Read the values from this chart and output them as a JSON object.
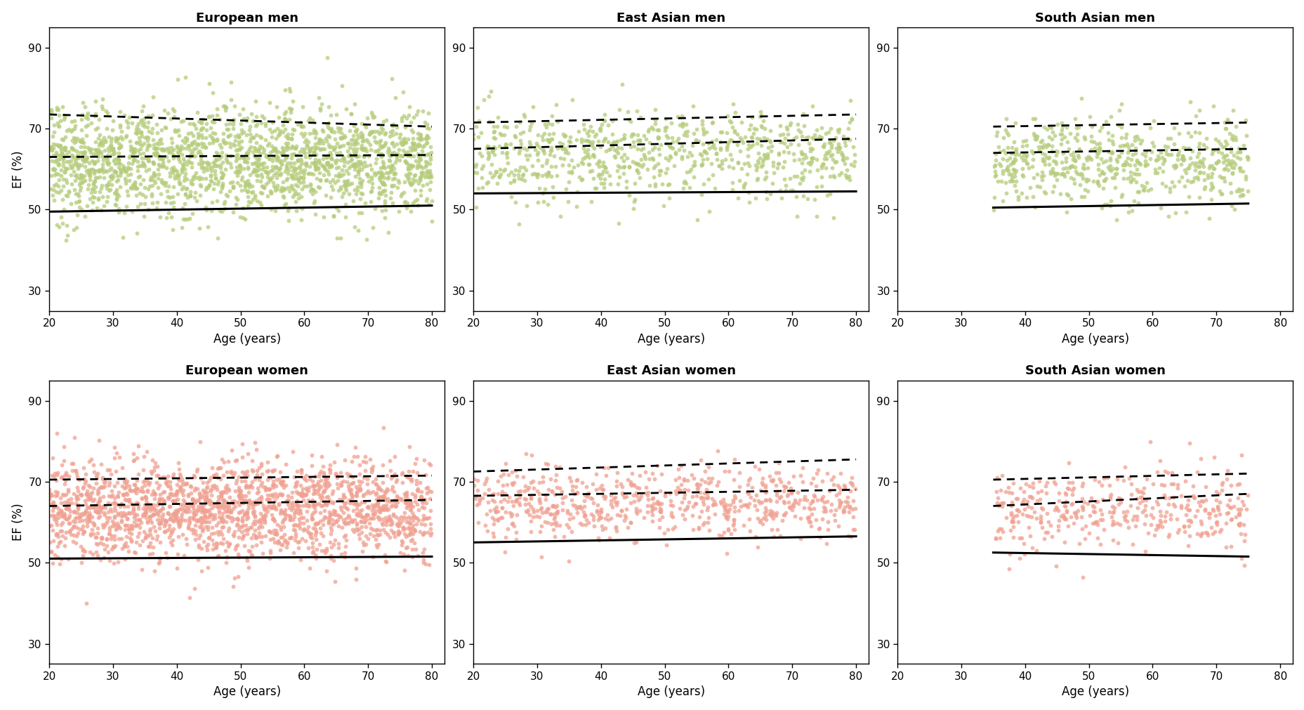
{
  "panels": [
    {
      "title": "European men",
      "sex": "men",
      "ethnicity": "european",
      "dot_color": "#b5cc7a",
      "x_min": 20,
      "x_max": 80,
      "data_x_min": 20,
      "data_x_max": 80,
      "n_points": 2000,
      "ef_mean": 62,
      "ef_std": 6.5,
      "p5_start": 49.5,
      "p5_end": 51.0,
      "p50_start": 63.0,
      "p50_end": 63.5,
      "p95_start": 73.5,
      "p95_end": 70.5
    },
    {
      "title": "East Asian men",
      "sex": "men",
      "ethnicity": "east_asian",
      "dot_color": "#b5cc7a",
      "x_min": 20,
      "x_max": 80,
      "data_x_min": 20,
      "data_x_max": 80,
      "n_points": 800,
      "ef_mean": 64,
      "ef_std": 5.5,
      "p5_start": 54.0,
      "p5_end": 54.5,
      "p50_start": 65.0,
      "p50_end": 67.5,
      "p95_start": 71.5,
      "p95_end": 73.5
    },
    {
      "title": "South Asian men",
      "sex": "men",
      "ethnicity": "south_asian",
      "dot_color": "#b5cc7a",
      "x_min": 20,
      "x_max": 80,
      "data_x_min": 35,
      "data_x_max": 75,
      "n_points": 600,
      "ef_mean": 62,
      "ef_std": 5.0,
      "p5_start": 50.5,
      "p5_end": 51.5,
      "p50_start": 64.0,
      "p50_end": 65.0,
      "p95_start": 70.5,
      "p95_end": 71.5
    },
    {
      "title": "European women",
      "sex": "women",
      "ethnicity": "european",
      "dot_color": "#f0a090",
      "x_min": 20,
      "x_max": 80,
      "data_x_min": 20,
      "data_x_max": 80,
      "n_points": 2000,
      "ef_mean": 63,
      "ef_std": 6.0,
      "p5_start": 51.0,
      "p5_end": 51.5,
      "p50_start": 64.0,
      "p50_end": 65.5,
      "p95_start": 70.5,
      "p95_end": 71.5
    },
    {
      "title": "East Asian women",
      "sex": "women",
      "ethnicity": "east_asian",
      "dot_color": "#f0a090",
      "x_min": 20,
      "x_max": 80,
      "data_x_min": 20,
      "data_x_max": 80,
      "n_points": 700,
      "ef_mean": 65,
      "ef_std": 4.5,
      "p5_start": 55.0,
      "p5_end": 56.5,
      "p50_start": 66.5,
      "p50_end": 68.0,
      "p95_start": 72.5,
      "p95_end": 75.5
    },
    {
      "title": "South Asian women",
      "sex": "women",
      "ethnicity": "south_asian",
      "dot_color": "#f0a090",
      "x_min": 20,
      "x_max": 80,
      "data_x_min": 35,
      "data_x_max": 75,
      "n_points": 400,
      "ef_mean": 63,
      "ef_std": 5.0,
      "p5_start": 52.5,
      "p5_end": 51.5,
      "p50_start": 64.0,
      "p50_end": 67.0,
      "p95_start": 70.5,
      "p95_end": 72.0
    }
  ],
  "ylim": [
    25,
    95
  ],
  "yticks": [
    30,
    50,
    70,
    90
  ],
  "xticks_full": [
    20,
    30,
    40,
    50,
    60,
    70,
    80
  ],
  "ylabel": "EF (%)",
  "xlabel": "Age (years)",
  "title_fontsize": 13,
  "label_fontsize": 12,
  "tick_fontsize": 11,
  "dot_size": 18,
  "dot_alpha": 0.75,
  "line_color": "black",
  "line_width": 2.2,
  "dashed_linewidth": 2.0
}
